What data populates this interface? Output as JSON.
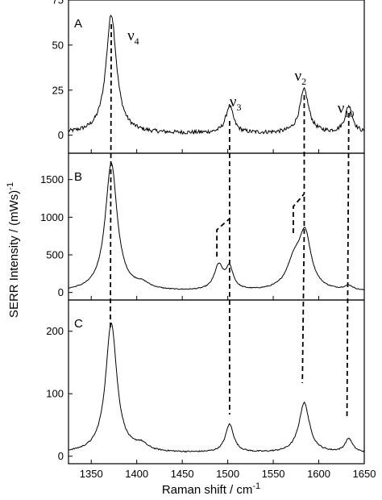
{
  "chart_data": {
    "type": "line",
    "xlabel": "Raman shift  / cm",
    "xlabel_sup": "-1",
    "ylabel": "SERR Intensity  / (mWs)",
    "ylabel_sup": "-1",
    "xlim": [
      1325,
      1650
    ],
    "xticks": [
      1350,
      1400,
      1450,
      1500,
      1550,
      1600,
      1650
    ],
    "panels": [
      {
        "label": "A",
        "ylim": [
          -10,
          75
        ],
        "yticks": [
          0,
          25,
          50,
          75
        ],
        "peaks": [
          {
            "center": 1372,
            "height": 66,
            "width": 7
          },
          {
            "center": 1502,
            "height": 15,
            "width": 5
          },
          {
            "center": 1584,
            "height": 24,
            "width": 6
          },
          {
            "center": 1633,
            "height": 15,
            "width": 5
          }
        ],
        "baseline": 1,
        "noise": 2.2,
        "annotations": [
          {
            "text": "ν",
            "sub": "4",
            "x": 1372
          },
          {
            "text": "ν",
            "sub": "3",
            "x": 1502
          },
          {
            "text": "ν",
            "sub": "2",
            "x": 1584
          },
          {
            "text": "ν",
            "sub": "10",
            "x": 1633
          }
        ]
      },
      {
        "label": "B",
        "ylim": [
          -100,
          1850
        ],
        "yticks": [
          0,
          500,
          1000,
          1500
        ],
        "peaks": [
          {
            "center": 1372,
            "height": 1700,
            "width": 8
          },
          {
            "center": 1406,
            "height": 70,
            "width": 10
          },
          {
            "center": 1490,
            "height": 320,
            "width": 6
          },
          {
            "center": 1502,
            "height": 280,
            "width": 5
          },
          {
            "center": 1573,
            "height": 350,
            "width": 10
          },
          {
            "center": 1585,
            "height": 700,
            "width": 8
          },
          {
            "center": 1633,
            "height": 60,
            "width": 6
          }
        ],
        "baseline": 10,
        "noise": 12
      },
      {
        "label": "C",
        "ylim": [
          -12,
          250
        ],
        "yticks": [
          0,
          100,
          200
        ],
        "peaks": [
          {
            "center": 1372,
            "height": 208,
            "width": 7.5
          },
          {
            "center": 1405,
            "height": 10,
            "width": 8
          },
          {
            "center": 1502,
            "height": 45,
            "width": 5.5
          },
          {
            "center": 1584,
            "height": 80,
            "width": 7
          },
          {
            "center": 1633,
            "height": 22,
            "width": 5
          }
        ],
        "baseline": 5,
        "noise": 2.0
      }
    ],
    "marker_lines": [
      {
        "name": "nu4",
        "x_top": 1372,
        "x_bottom": 1371
      },
      {
        "name": "nu3",
        "x_top": 1502,
        "x_bottom": 1502,
        "b_split": [
          1488,
          1502
        ]
      },
      {
        "name": "nu2",
        "x_top": 1584,
        "x_bottom": 1582,
        "b_split": [
          1572,
          1584
        ]
      },
      {
        "name": "nu10",
        "x_top": 1633,
        "x_bottom": 1631
      }
    ]
  }
}
